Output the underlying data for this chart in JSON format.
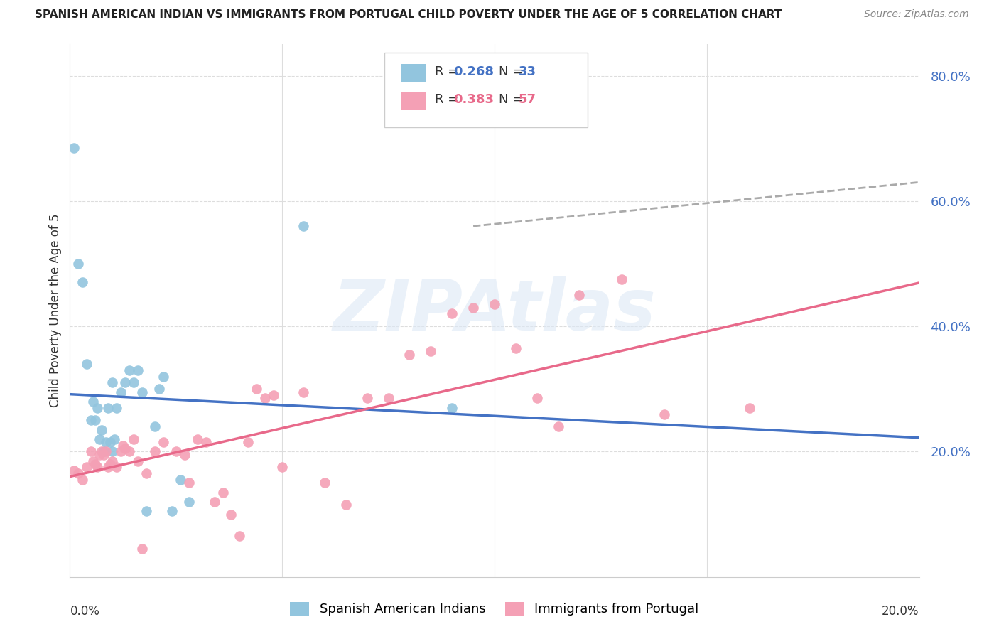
{
  "title": "SPANISH AMERICAN INDIAN VS IMMIGRANTS FROM PORTUGAL CHILD POVERTY UNDER THE AGE OF 5 CORRELATION CHART",
  "source": "Source: ZipAtlas.com",
  "ylabel": "Child Poverty Under the Age of 5",
  "y_ticks": [
    20.0,
    40.0,
    60.0,
    80.0
  ],
  "y_tick_labels": [
    "20.0%",
    "40.0%",
    "60.0%",
    "80.0%"
  ],
  "x_range": [
    0.0,
    20.0
  ],
  "y_range": [
    0.0,
    85.0
  ],
  "color_blue": "#92c5de",
  "color_pink": "#f4a0b5",
  "color_blue_line": "#4472c4",
  "color_pink_line": "#e8698a",
  "color_gray_dashed": "#aaaaaa",
  "legend_r1": "R = 0.268",
  "legend_n1": "N = 33",
  "legend_r2": "R = 0.383",
  "legend_n2": "N = 57",
  "watermark": "ZIPAtlas",
  "blue_points_x": [
    0.1,
    0.2,
    0.3,
    0.4,
    0.5,
    0.55,
    0.6,
    0.65,
    0.7,
    0.75,
    0.8,
    0.85,
    0.9,
    0.95,
    1.0,
    1.05,
    1.1,
    1.2,
    1.3,
    1.4,
    1.5,
    1.6,
    1.7,
    1.8,
    2.0,
    2.1,
    2.2,
    2.4,
    2.6,
    2.8,
    5.5,
    9.0,
    1.0
  ],
  "blue_points_y": [
    68.5,
    50.0,
    47.0,
    34.0,
    25.0,
    28.0,
    25.0,
    27.0,
    22.0,
    23.5,
    20.0,
    21.5,
    27.0,
    21.5,
    20.0,
    22.0,
    27.0,
    29.5,
    31.0,
    33.0,
    31.0,
    33.0,
    29.5,
    10.5,
    24.0,
    30.0,
    32.0,
    10.5,
    15.5,
    12.0,
    56.0,
    27.0,
    31.0
  ],
  "pink_points_x": [
    0.1,
    0.2,
    0.3,
    0.4,
    0.5,
    0.55,
    0.6,
    0.65,
    0.7,
    0.75,
    0.8,
    0.85,
    0.9,
    0.95,
    1.0,
    1.1,
    1.2,
    1.25,
    1.3,
    1.4,
    1.5,
    1.6,
    1.7,
    1.8,
    2.0,
    2.2,
    2.5,
    2.7,
    2.8,
    3.0,
    3.2,
    3.4,
    3.6,
    3.8,
    4.0,
    4.2,
    4.4,
    4.6,
    4.8,
    5.0,
    5.5,
    6.0,
    6.5,
    7.0,
    7.5,
    8.0,
    8.5,
    9.0,
    9.5,
    10.0,
    10.5,
    11.0,
    11.5,
    12.0,
    13.0,
    14.0,
    16.0
  ],
  "pink_points_y": [
    17.0,
    16.5,
    15.5,
    17.5,
    20.0,
    18.5,
    18.0,
    17.5,
    19.5,
    20.0,
    19.5,
    20.0,
    17.5,
    18.0,
    18.5,
    17.5,
    20.0,
    21.0,
    20.5,
    20.0,
    22.0,
    18.5,
    4.5,
    16.5,
    20.0,
    21.5,
    20.0,
    19.5,
    15.0,
    22.0,
    21.5,
    12.0,
    13.5,
    10.0,
    6.5,
    21.5,
    30.0,
    28.5,
    29.0,
    17.5,
    29.5,
    15.0,
    11.5,
    28.5,
    28.5,
    35.5,
    36.0,
    42.0,
    43.0,
    43.5,
    36.5,
    28.5,
    24.0,
    45.0,
    47.5,
    26.0,
    27.0
  ]
}
